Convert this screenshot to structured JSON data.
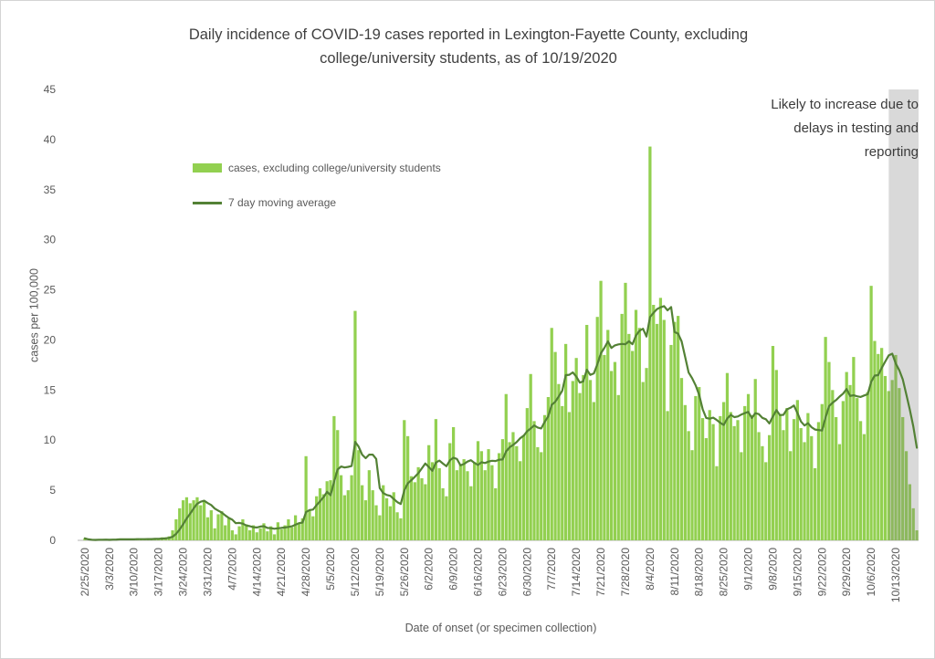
{
  "title": "Daily incidence of COVID-19 cases reported in Lexington-Fayette County, excluding\ncollege/university students, as of 10/19/2020",
  "annotation": "Likely to increase due to\ndelays in testing and\nreporting",
  "legend": [
    {
      "label": "cases, excluding college/university students",
      "type": "bar",
      "color": "#92d050"
    },
    {
      "label": "7 day moving average",
      "type": "line",
      "color": "#538135"
    }
  ],
  "y_axis": {
    "title": "cases per 100,000",
    "ticks": [
      0,
      5,
      10,
      15,
      20,
      25,
      30,
      35,
      40,
      45
    ],
    "max": 45
  },
  "x_axis": {
    "title": "Date of onset (or specimen collection)",
    "tick_interval_days": 7,
    "tick_labels": [
      "2/25/2020",
      "3/3/2020",
      "3/10/2020",
      "3/17/2020",
      "3/24/2020",
      "3/31/2020",
      "4/7/2020",
      "4/14/2020",
      "4/21/2020",
      "4/28/2020",
      "5/5/2020",
      "5/12/2020",
      "5/19/2020",
      "5/26/2020",
      "6/2/2020",
      "6/9/2020",
      "6/16/2020",
      "6/23/2020",
      "6/30/2020",
      "7/7/2020",
      "7/14/2020",
      "7/21/2020",
      "7/28/2020",
      "8/4/2020",
      "8/11/2020",
      "8/18/2020",
      "8/25/2020",
      "9/1/2020",
      "9/8/2020",
      "9/15/2020",
      "9/22/2020",
      "9/29/2020",
      "10/6/2020",
      "10/13/2020"
    ]
  },
  "chart_data": {
    "type": "bar",
    "title": "Daily incidence of COVID-19 cases reported in Lexington-Fayette County, excluding college/university students, as of 10/19/2020",
    "xlabel": "Date of onset (or specimen collection)",
    "ylabel": "cases per 100,000",
    "ylim": [
      0,
      45
    ],
    "grid": false,
    "legend_position": "inside-upper-left",
    "start_date": "2/25/2020",
    "end_date": "10/19/2020",
    "series_name": "cases, excluding college/university students",
    "values": [
      0.2,
      0,
      0,
      0,
      0.1,
      0.1,
      0.1,
      0.1,
      0.1,
      0.1,
      0.1,
      0.1,
      0.1,
      0.1,
      0.1,
      0.2,
      0.1,
      0.1,
      0.2,
      0.1,
      0.2,
      0.2,
      0.3,
      0.3,
      0.4,
      1.0,
      2.1,
      3.2,
      4.0,
      4.3,
      3.7,
      4.0,
      4.3,
      3.5,
      3.9,
      2.3,
      3.0,
      1.2,
      2.6,
      2.9,
      1.5,
      2.2,
      1.0,
      0.6,
      1.4,
      2.1,
      1.6,
      1.0,
      1.5,
      0.8,
      1.2,
      1.7,
      0.9,
      1.4,
      0.6,
      1.8,
      1.1,
      1.5,
      2.1,
      1.3,
      2.5,
      1.7,
      2.2,
      8.4,
      3.0,
      2.4,
      4.4,
      5.2,
      4.6,
      5.9,
      6.0,
      12.4,
      11.0,
      6.5,
      4.5,
      5.0,
      6.5,
      22.9,
      9.0,
      5.5,
      4.0,
      7.0,
      5.0,
      3.5,
      2.5,
      5.5,
      4.2,
      3.4,
      4.8,
      2.8,
      2.2,
      12.0,
      10.4,
      6.4,
      5.8,
      7.3,
      6.2,
      5.6,
      9.5,
      7.8,
      12.1,
      7.2,
      5.2,
      4.4,
      9.7,
      11.3,
      7.0,
      7.6,
      8.1,
      6.9,
      5.4,
      7.8,
      9.9,
      8.9,
      7.0,
      9.1,
      7.5,
      5.2,
      8.7,
      10.1,
      14.6,
      9.8,
      10.8,
      9.4,
      7.9,
      10.5,
      13.2,
      16.6,
      11.9,
      9.3,
      8.8,
      12.5,
      14.3,
      21.2,
      18.8,
      15.6,
      13.4,
      19.6,
      12.8,
      15.9,
      18.2,
      14.7,
      16.5,
      21.5,
      16.0,
      13.8,
      22.3,
      25.9,
      18.5,
      21.0,
      16.9,
      17.8,
      14.5,
      22.6,
      25.7,
      20.6,
      18.9,
      23.0,
      21.2,
      15.8,
      17.2,
      39.3,
      23.5,
      21.6,
      24.2,
      22.0,
      12.9,
      19.5,
      21.8,
      22.4,
      16.2,
      13.5,
      10.9,
      9.0,
      14.4,
      15.3,
      12.2,
      10.2,
      13.0,
      11.6,
      7.4,
      12.4,
      13.8,
      16.7,
      12.8,
      11.4,
      12.0,
      8.8,
      13.4,
      14.6,
      12.5,
      16.1,
      10.8,
      9.4,
      7.8,
      10.5,
      19.4,
      17.0,
      12.6,
      11.0,
      13.2,
      8.9,
      12.1,
      14.0,
      11.2,
      9.8,
      12.7,
      10.4,
      7.2,
      11.8,
      13.6,
      20.3,
      17.8,
      15.0,
      12.3,
      9.6,
      13.9,
      16.8,
      15.5,
      18.3,
      14.2,
      11.9,
      10.6,
      14.8,
      25.4,
      19.9,
      18.6,
      19.2,
      16.4,
      14.9,
      16.0,
      18.5,
      15.2,
      12.3,
      8.9,
      5.6,
      3.2,
      1.0
    ],
    "moving_average": {
      "window": 7,
      "method": "trailing mean computed from values"
    },
    "shaded_region": {
      "start_index": 230,
      "start_date": "10/12/2020",
      "end_date": "10/19/2020",
      "annotation": "Likely to increase due to delays in testing and reporting"
    }
  },
  "colors": {
    "bars": "#92d050",
    "moving_average_line": "#538135",
    "shaded_band": "rgba(128,128,128,0.3)",
    "axis_text": "#595959",
    "title_text": "#404040",
    "baseline": "#d9d9d9"
  }
}
